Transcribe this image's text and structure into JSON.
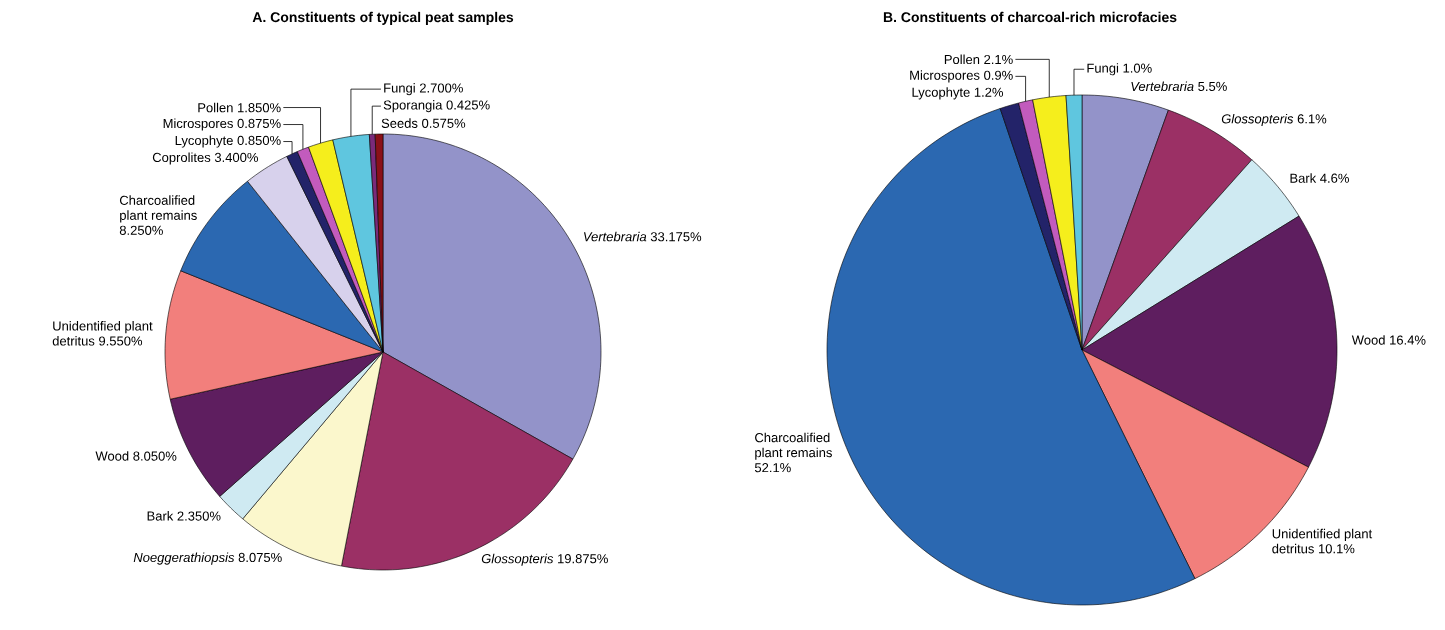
{
  "chart_data": [
    {
      "type": "pie",
      "title": "A. Constituents of typical peat samples",
      "categories": [
        "*Vertebraria*",
        "*Glossopteris*",
        "*Noeggerathiopsis*",
        "Bark",
        "Wood",
        "Unidentified plant detritus",
        "Charcoalified plant remains",
        "Coprolites",
        "Lycophyte",
        "Microspores",
        "Pollen",
        "Fungi",
        "Sporangia",
        "Seeds"
      ],
      "values": [
        33.175,
        19.875,
        8.075,
        2.35,
        8.05,
        9.55,
        8.25,
        3.4,
        0.85,
        0.875,
        1.85,
        2.7,
        0.425,
        0.575
      ],
      "value_labels": [
        "33.175%",
        "19.875%",
        "8.075%",
        "2.350%",
        "8.050%",
        "9.550%",
        "8.250%",
        "3.400%",
        "0.850%",
        "0.875%",
        "1.850%",
        "2.700%",
        "0.425%",
        "0.575%"
      ],
      "colors": [
        "#9393c9",
        "#9b3065",
        "#fbf7cc",
        "#cfeaf2",
        "#5e1e5f",
        "#f27f7c",
        "#2b68b1",
        "#d7d1ec",
        "#232369",
        "#c25bbd",
        "#f5ee1c",
        "#5fc6df",
        "#7a2a7a",
        "#8a1018"
      ]
    },
    {
      "type": "pie",
      "title": "B. Constituents of charcoal-rich microfacies",
      "categories": [
        "*Vertebraria*",
        "*Glossopteris*",
        "Bark",
        "Wood",
        "Unidentified plant detritus",
        "Charcoalified plant remains",
        "Lycophyte",
        "Microspores",
        "Pollen",
        "Fungi"
      ],
      "values": [
        5.5,
        6.1,
        4.6,
        16.4,
        10.1,
        52.1,
        1.2,
        0.9,
        2.1,
        1.0
      ],
      "value_labels": [
        "5.5%",
        "6.1%",
        "4.6%",
        "16.4%",
        "10.1%",
        "52.1%",
        "1.2%",
        "0.9%",
        "2.1%",
        "1.0%"
      ],
      "colors": [
        "#9393c9",
        "#9b3065",
        "#cfeaf2",
        "#5e1e5f",
        "#f27f7c",
        "#2b68b1",
        "#232369",
        "#c25bbd",
        "#f5ee1c",
        "#5fc6df"
      ]
    }
  ]
}
